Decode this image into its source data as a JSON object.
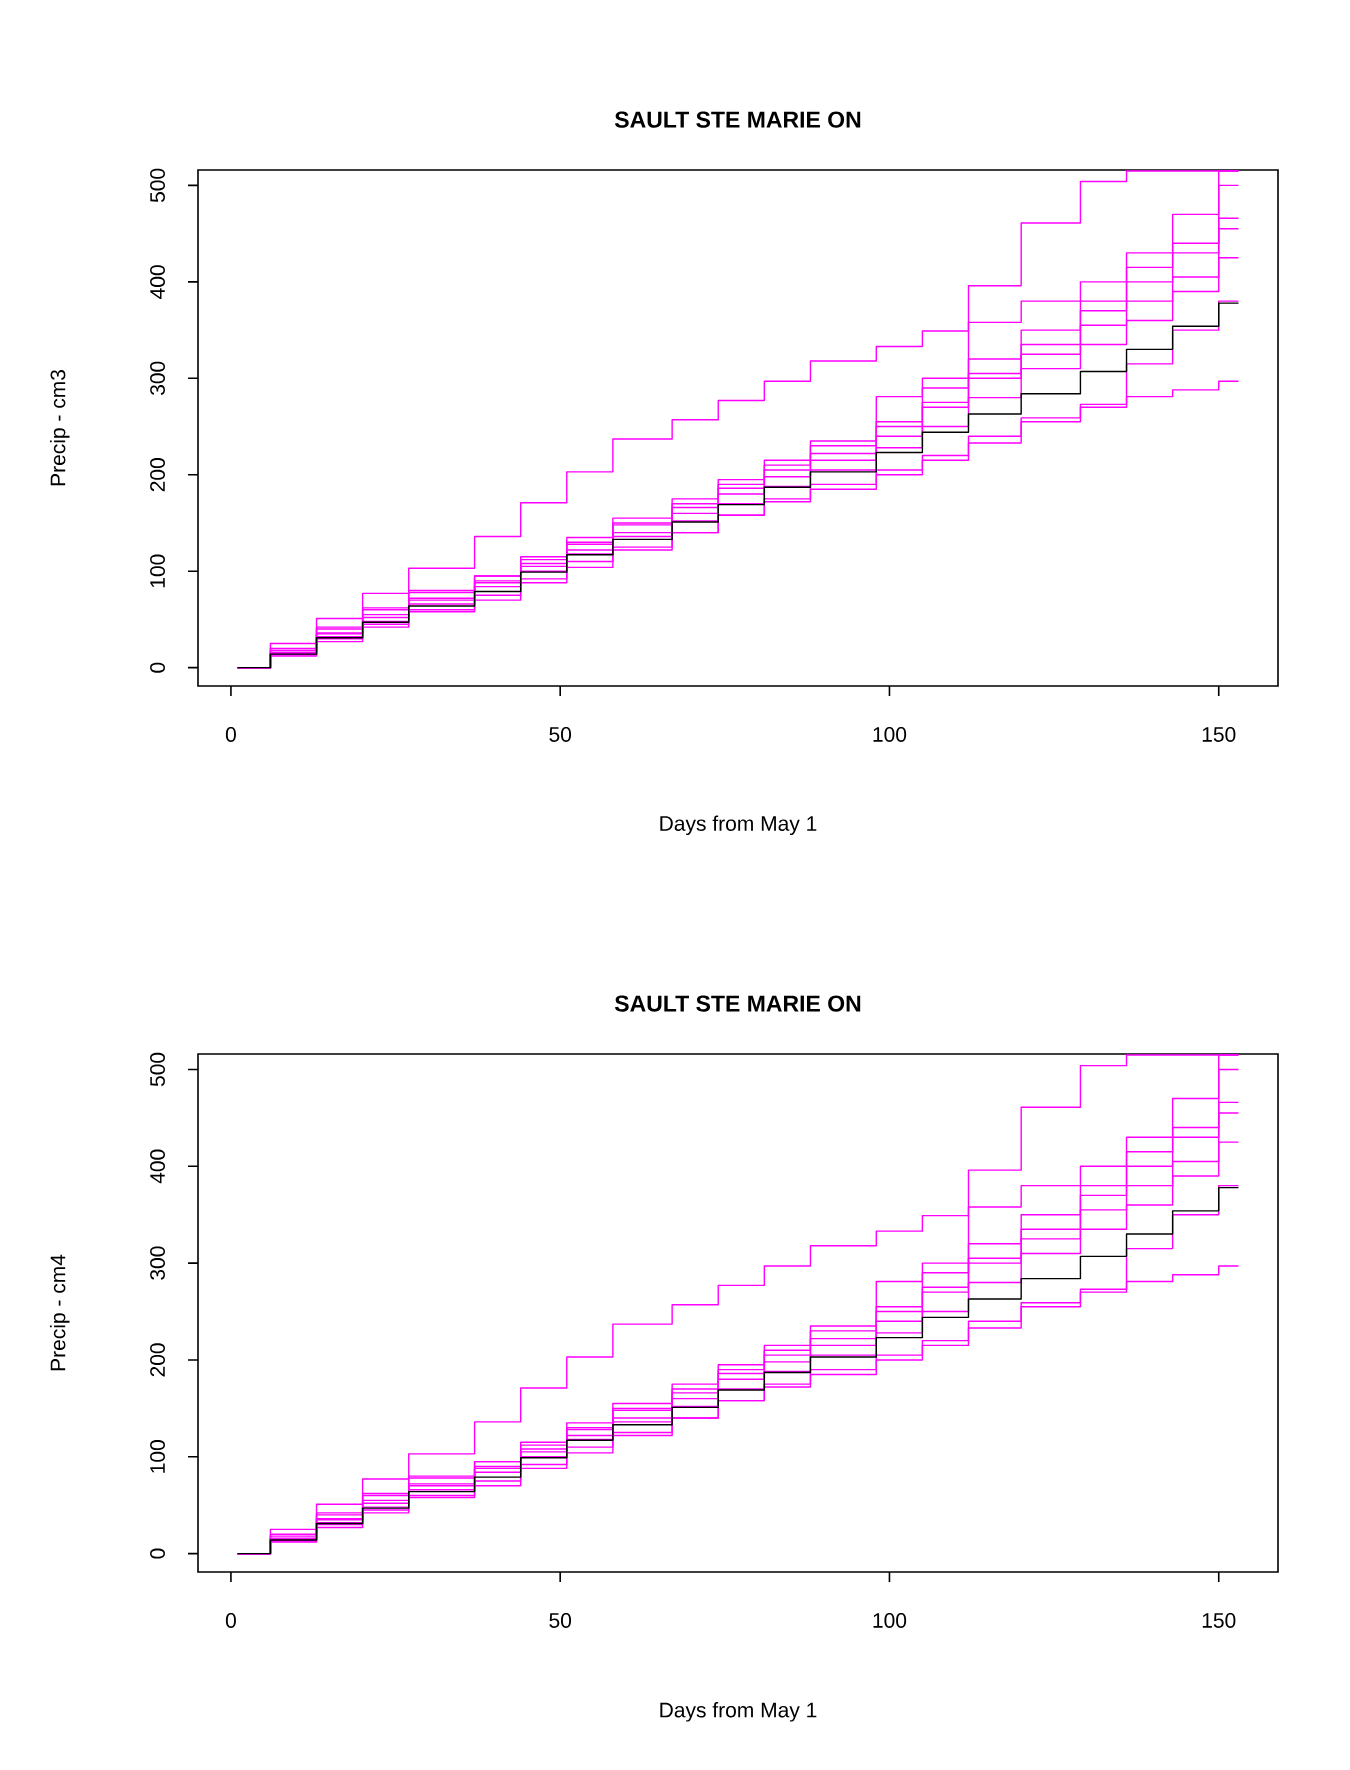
{
  "chart_data": [
    {
      "type": "step",
      "title": "SAULT STE MARIE ON",
      "xlabel": "Days from May 1",
      "ylabel": "Precip - cm3",
      "xlim": [
        -5,
        159
      ],
      "ylim": [
        -19,
        516
      ],
      "xticks": [
        0,
        50,
        100,
        150
      ],
      "yticks": [
        0,
        100,
        200,
        300,
        400,
        500
      ],
      "x": [
        1,
        6,
        13,
        20,
        27,
        37,
        44,
        51,
        58,
        67,
        74,
        81,
        88,
        98,
        105,
        112,
        120,
        129,
        136,
        143,
        150,
        153
      ],
      "series": [
        {
          "color": "#ff00ff",
          "values": [
            0,
            25,
            51,
            77,
            103,
            136,
            171,
            203,
            237,
            257,
            277,
            297,
            318,
            333,
            349,
            396,
            461,
            504,
            515,
            515,
            515,
            515
          ]
        },
        {
          "color": "#ff00ff",
          "values": [
            0,
            12,
            27,
            42,
            58,
            70,
            88,
            104,
            122,
            140,
            158,
            172,
            185,
            200,
            215,
            233,
            259,
            273,
            281,
            288,
            297,
            297
          ]
        },
        {
          "color": "#ff00ff",
          "values": [
            0,
            18,
            40,
            60,
            80,
            95,
            115,
            135,
            155,
            175,
            195,
            215,
            235,
            281,
            300,
            358,
            380,
            400,
            430,
            470,
            500,
            500
          ]
        },
        {
          "color": "#ff00ff",
          "values": [
            0,
            15,
            35,
            52,
            70,
            88,
            105,
            122,
            140,
            160,
            180,
            198,
            215,
            250,
            275,
            305,
            335,
            370,
            400,
            440,
            515,
            515
          ]
        },
        {
          "color": "#ff00ff",
          "values": [
            0,
            16,
            36,
            55,
            72,
            90,
            108,
            128,
            148,
            166,
            186,
            205,
            222,
            240,
            270,
            300,
            325,
            355,
            380,
            405,
            466,
            466
          ]
        },
        {
          "color": "#ff00ff",
          "values": [
            0,
            14,
            32,
            48,
            66,
            84,
            100,
            118,
            136,
            152,
            170,
            188,
            205,
            228,
            250,
            280,
            310,
            335,
            360,
            390,
            425,
            425
          ]
        },
        {
          "color": "#ff00ff",
          "values": [
            0,
            20,
            42,
            62,
            78,
            95,
            112,
            130,
            150,
            170,
            190,
            210,
            230,
            255,
            290,
            320,
            350,
            380,
            415,
            430,
            455,
            455
          ]
        },
        {
          "color": "#ff00ff",
          "values": [
            0,
            13,
            30,
            45,
            60,
            75,
            92,
            110,
            125,
            140,
            158,
            175,
            190,
            205,
            220,
            240,
            255,
            270,
            315,
            350,
            380,
            380
          ]
        },
        {
          "color": "#000000",
          "values": [
            0,
            14,
            31,
            47,
            64,
            79,
            99,
            117,
            133,
            151,
            169,
            187,
            203,
            223,
            244,
            263,
            284,
            307,
            330,
            354,
            378,
            378
          ]
        }
      ]
    },
    {
      "type": "step",
      "title": "SAULT STE MARIE ON",
      "xlabel": "Days from May 1",
      "ylabel": "Precip - cm4",
      "xlim": [
        -5,
        159
      ],
      "ylim": [
        -19,
        516
      ],
      "xticks": [
        0,
        50,
        100,
        150
      ],
      "yticks": [
        0,
        100,
        200,
        300,
        400,
        500
      ],
      "x": [
        1,
        6,
        13,
        20,
        27,
        37,
        44,
        51,
        58,
        67,
        74,
        81,
        88,
        98,
        105,
        112,
        120,
        129,
        136,
        143,
        150,
        153
      ],
      "series": [
        {
          "color": "#ff00ff",
          "values": [
            0,
            25,
            51,
            77,
            103,
            136,
            171,
            203,
            237,
            257,
            277,
            297,
            318,
            333,
            349,
            396,
            461,
            504,
            515,
            515,
            515,
            515
          ]
        },
        {
          "color": "#ff00ff",
          "values": [
            0,
            12,
            27,
            42,
            58,
            70,
            88,
            104,
            122,
            140,
            158,
            172,
            185,
            200,
            215,
            233,
            259,
            273,
            281,
            288,
            297,
            297
          ]
        },
        {
          "color": "#ff00ff",
          "values": [
            0,
            18,
            40,
            60,
            80,
            95,
            115,
            135,
            155,
            175,
            195,
            215,
            235,
            281,
            300,
            358,
            380,
            400,
            430,
            470,
            500,
            500
          ]
        },
        {
          "color": "#ff00ff",
          "values": [
            0,
            15,
            35,
            52,
            70,
            88,
            105,
            122,
            140,
            160,
            180,
            198,
            215,
            250,
            275,
            305,
            335,
            370,
            400,
            440,
            515,
            515
          ]
        },
        {
          "color": "#ff00ff",
          "values": [
            0,
            16,
            36,
            55,
            72,
            90,
            108,
            128,
            148,
            166,
            186,
            205,
            222,
            240,
            270,
            300,
            325,
            355,
            380,
            405,
            466,
            466
          ]
        },
        {
          "color": "#ff00ff",
          "values": [
            0,
            14,
            32,
            48,
            66,
            84,
            100,
            118,
            136,
            152,
            170,
            188,
            205,
            228,
            250,
            280,
            310,
            335,
            360,
            390,
            425,
            425
          ]
        },
        {
          "color": "#ff00ff",
          "values": [
            0,
            20,
            42,
            62,
            78,
            95,
            112,
            130,
            150,
            170,
            190,
            210,
            230,
            255,
            290,
            320,
            350,
            380,
            415,
            430,
            455,
            455
          ]
        },
        {
          "color": "#ff00ff",
          "values": [
            0,
            13,
            30,
            45,
            60,
            75,
            92,
            110,
            125,
            140,
            158,
            175,
            190,
            205,
            220,
            240,
            255,
            270,
            315,
            350,
            380,
            380
          ]
        },
        {
          "color": "#000000",
          "values": [
            0,
            14,
            31,
            47,
            64,
            79,
            99,
            117,
            133,
            151,
            169,
            187,
            203,
            223,
            244,
            263,
            284,
            307,
            330,
            354,
            378,
            378
          ]
        }
      ]
    }
  ]
}
